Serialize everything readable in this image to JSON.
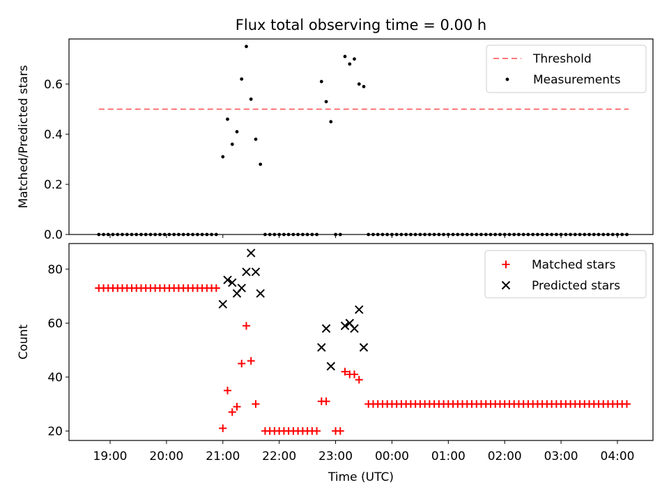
{
  "figure": {
    "title": "Flux total observing time = 0.00 h"
  },
  "chart_data": [
    {
      "type": "scatter",
      "panel": "top",
      "ylabel": "Matched/Predicted stars",
      "ylim": [
        0,
        0.78
      ],
      "yticks": [
        "0.0",
        "0.2",
        "0.4",
        "0.6"
      ],
      "legend_position": "upper-right",
      "threshold": {
        "name": "Threshold",
        "value": 0.5,
        "color": "#ff7777",
        "style": "dashed",
        "x_range": [
          "18:48",
          "04:12"
        ]
      },
      "series": [
        {
          "name": "Measurements",
          "color": "#000000",
          "points": [
            [
              "21:00",
              0.31
            ],
            [
              "21:05",
              0.46
            ],
            [
              "21:10",
              0.36
            ],
            [
              "21:15",
              0.41
            ],
            [
              "21:20",
              0.62
            ],
            [
              "21:25",
              0.75
            ],
            [
              "21:30",
              0.54
            ],
            [
              "21:35",
              0.38
            ],
            [
              "21:40",
              0.28
            ],
            [
              "22:45",
              0.61
            ],
            [
              "22:50",
              0.53
            ],
            [
              "22:55",
              0.45
            ],
            [
              "23:10",
              0.71
            ],
            [
              "23:15",
              0.68
            ],
            [
              "23:20",
              0.7
            ],
            [
              "23:25",
              0.6
            ],
            [
              "23:30",
              0.59
            ]
          ],
          "zero_runs": [
            {
              "from": "18:48",
              "to": "20:57",
              "step_min": 5
            },
            {
              "from": "21:45",
              "to": "22:40",
              "step_min": 5
            },
            {
              "from": "23:00",
              "to": "23:05",
              "step_min": 5
            },
            {
              "from": "23:35",
              "to": "04:12",
              "step_min": 5
            }
          ]
        }
      ]
    },
    {
      "type": "scatter",
      "panel": "bottom",
      "ylabel": "Count",
      "xlabel": "Time (UTC)",
      "ylim": [
        16.5,
        89.5
      ],
      "yticks": [
        "20",
        "40",
        "60",
        "80"
      ],
      "xticks": [
        "19:00",
        "20:00",
        "21:00",
        "22:00",
        "23:00",
        "00:00",
        "01:00",
        "02:00",
        "03:00",
        "04:00"
      ],
      "legend_position": "upper-right",
      "series": [
        {
          "name": "Matched stars",
          "marker": "plus",
          "color": "#ff0000",
          "runs": [
            {
              "from": "18:48",
              "to": "20:57",
              "step_min": 5,
              "value": 73
            },
            {
              "from": "21:45",
              "to": "22:40",
              "step_min": 5,
              "value": 20
            },
            {
              "from": "23:00",
              "to": "23:05",
              "step_min": 5,
              "value": 20
            },
            {
              "from": "23:35",
              "to": "04:12",
              "step_min": 5,
              "value": 30
            }
          ],
          "points": [
            [
              "21:00",
              21
            ],
            [
              "21:05",
              35
            ],
            [
              "21:10",
              27
            ],
            [
              "21:15",
              29
            ],
            [
              "21:20",
              45
            ],
            [
              "21:25",
              59
            ],
            [
              "21:30",
              46
            ],
            [
              "21:35",
              30
            ],
            [
              "22:45",
              31
            ],
            [
              "22:50",
              31
            ],
            [
              "23:10",
              42
            ],
            [
              "23:15",
              41
            ],
            [
              "23:20",
              41
            ],
            [
              "23:25",
              39
            ]
          ]
        },
        {
          "name": "Predicted stars",
          "marker": "x",
          "color": "#000000",
          "points": [
            [
              "21:00",
              67
            ],
            [
              "21:05",
              76
            ],
            [
              "21:10",
              75
            ],
            [
              "21:15",
              71
            ],
            [
              "21:20",
              73
            ],
            [
              "21:25",
              79
            ],
            [
              "21:30",
              86
            ],
            [
              "21:35",
              79
            ],
            [
              "21:40",
              71
            ],
            [
              "22:45",
              51
            ],
            [
              "22:50",
              58
            ],
            [
              "22:55",
              44
            ],
            [
              "23:10",
              59
            ],
            [
              "23:15",
              60
            ],
            [
              "23:20",
              58
            ],
            [
              "23:25",
              65
            ],
            [
              "23:30",
              51
            ]
          ]
        }
      ]
    }
  ]
}
